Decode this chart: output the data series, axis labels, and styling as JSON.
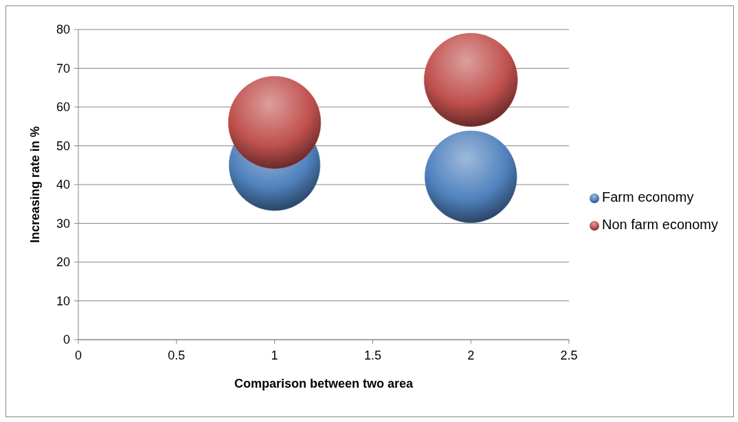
{
  "chart_data": {
    "type": "bubble",
    "xlabel": "Comparison between two area",
    "ylabel": "Increasing rate in %",
    "x": [
      1,
      2
    ],
    "series": [
      {
        "name": "Farm economy",
        "color": "#4f81bd",
        "values": [
          45,
          42
        ],
        "sizes": [
          0.95,
          0.97
        ]
      },
      {
        "name": "Non farm economy",
        "color": "#c0504d",
        "values": [
          56,
          67
        ],
        "sizes": [
          0.98,
          1
        ]
      }
    ],
    "xlim": [
      0,
      2.5
    ],
    "xticks": [
      0,
      0.5,
      1,
      1.5,
      2,
      2.5
    ],
    "ylim": [
      0,
      80
    ],
    "yticks": [
      0,
      10,
      20,
      30,
      40,
      50,
      60,
      70,
      80
    ],
    "grid": "y",
    "legend": "right"
  }
}
